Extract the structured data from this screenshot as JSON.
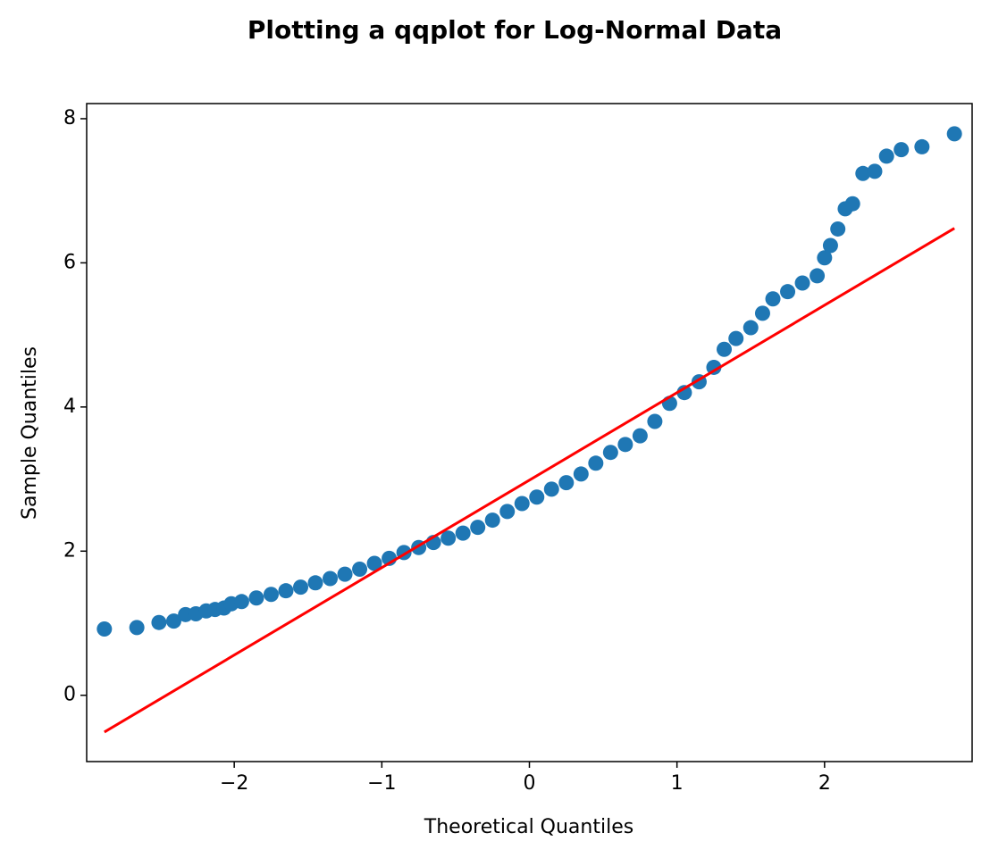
{
  "chart_data": {
    "type": "scatter",
    "title": "Plotting a qqplot for Log-Normal Data",
    "x_label": "Theoretical Quantiles",
    "y_label": "Sample Quantiles",
    "xlim": [
      -3.0,
      3.0
    ],
    "ylim": [
      -0.92,
      8.21
    ],
    "xticks": [
      {
        "value": -2,
        "label": "−2"
      },
      {
        "value": -1,
        "label": "−1"
      },
      0,
      1,
      2
    ],
    "yticks": [
      0,
      2,
      4,
      6,
      8
    ],
    "series": [
      {
        "name": "Sample",
        "color": "#1f77b4",
        "x": [
          -2.88,
          -2.66,
          -2.51,
          -2.41,
          -2.33,
          -2.26,
          -2.19,
          -2.13,
          -2.07,
          -2.02,
          -1.95,
          -1.85,
          -1.75,
          -1.65,
          -1.55,
          -1.45,
          -1.35,
          -1.25,
          -1.15,
          -1.05,
          -0.95,
          -0.85,
          -0.75,
          -0.65,
          -0.55,
          -0.45,
          -0.35,
          -0.25,
          -0.15,
          -0.05,
          0.05,
          0.15,
          0.25,
          0.35,
          0.45,
          0.55,
          0.65,
          0.75,
          0.85,
          0.95,
          1.05,
          1.15,
          1.25,
          1.32,
          1.4,
          1.5,
          1.58,
          1.65,
          1.75,
          1.85,
          1.95,
          2.0,
          2.04,
          2.09,
          2.14,
          2.19,
          2.26,
          2.34,
          2.42,
          2.52,
          2.66,
          2.88
        ],
        "values": [
          0.92,
          0.94,
          1.01,
          1.03,
          1.12,
          1.13,
          1.17,
          1.19,
          1.21,
          1.27,
          1.3,
          1.35,
          1.4,
          1.45,
          1.5,
          1.56,
          1.62,
          1.68,
          1.75,
          1.83,
          1.9,
          1.98,
          2.05,
          2.12,
          2.18,
          2.25,
          2.33,
          2.43,
          2.55,
          2.66,
          2.75,
          2.86,
          2.95,
          3.07,
          3.22,
          3.37,
          3.48,
          3.6,
          3.8,
          4.05,
          4.2,
          4.35,
          4.55,
          4.8,
          4.95,
          5.1,
          5.3,
          5.5,
          5.6,
          5.72,
          5.82,
          6.07,
          6.24,
          6.47,
          6.75,
          6.82,
          7.24,
          7.27,
          7.48,
          7.57,
          7.61,
          7.79
        ]
      },
      {
        "name": "Reference line",
        "type": "line",
        "color": "#ff0000",
        "x": [
          -2.88,
          2.88
        ],
        "values": [
          -0.51,
          6.48
        ]
      }
    ]
  }
}
